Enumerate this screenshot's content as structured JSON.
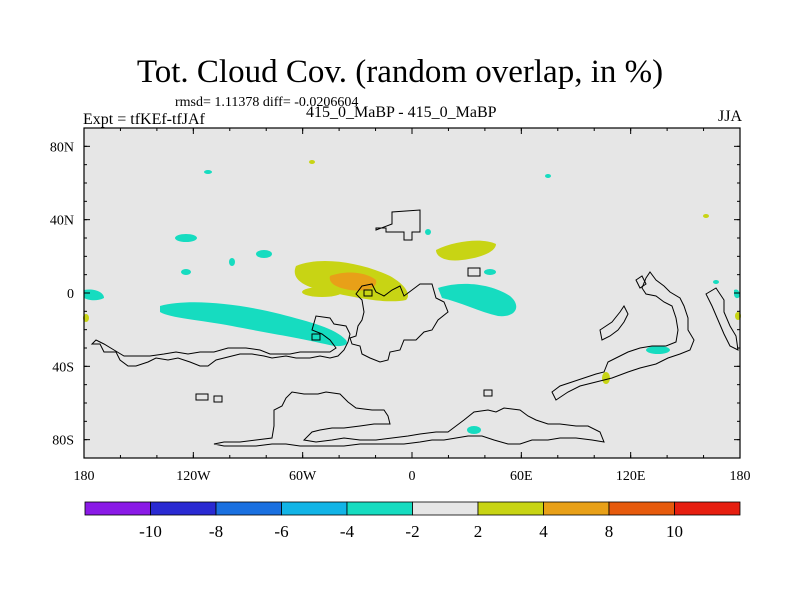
{
  "title": "Tot. Cloud Cov. (random overlap, in %)",
  "stats": "rmsd= 1.11378 diff= -0.0206604",
  "experiment": "Expt = tfKEf-tfJAf",
  "cases": "415_0_MaBP - 415_0_MaBP",
  "season": "JJA",
  "axes": {
    "x_ticks": [
      "180",
      "120W",
      "60W",
      "0",
      "60E",
      "120E",
      "180"
    ],
    "y_ticks": [
      "80N",
      "40N",
      "0",
      "40S",
      "80S"
    ]
  },
  "colorbar": {
    "labels": [
      "-10",
      "-8",
      "-6",
      "-4",
      "-2",
      "2",
      "4",
      "8",
      "10"
    ],
    "colors": [
      "#8a1ae6",
      "#2a2ad2",
      "#1a70e0",
      "#12b4e6",
      "#16dcc0",
      "#e6e6e6",
      "#c8d414",
      "#e8a018",
      "#e65a0c",
      "#e61e10"
    ]
  },
  "map": {
    "background_color": "#e6e6e6",
    "coastline_color": "#000000",
    "lon_range": [
      -180,
      180
    ],
    "lat_range": [
      -90,
      90
    ]
  }
}
